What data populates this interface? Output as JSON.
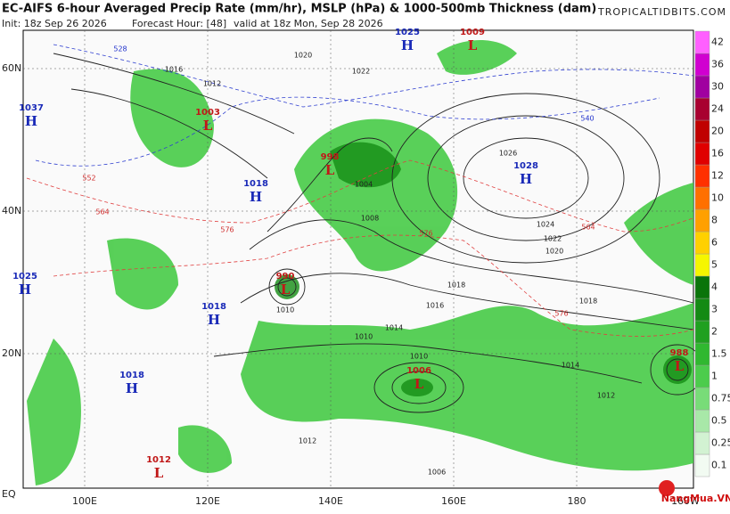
{
  "header": {
    "title": "EC-AIFS 6-hour Averaged Precip Rate (mm/hr), MSLP (hPa) & 1000-500mb Thickness (dam)",
    "init": "Init: 18z Sep 26 2026",
    "forecast_hour": "Forecast Hour: [48]",
    "valid": "valid at 18z Mon, Sep 28 2026",
    "site": "TROPICALTIDBITS.COM"
  },
  "axes": {
    "lon_labels": [
      "100E",
      "120E",
      "140E",
      "160E",
      "180",
      "160W"
    ],
    "lat_labels": [
      "60N",
      "40N",
      "20N",
      "EQ"
    ]
  },
  "colorbar": [
    "0.1",
    "0.25",
    "0.5",
    "0.75",
    "1",
    "1.5",
    "2",
    "3",
    "4",
    "5",
    "6",
    "8",
    "10",
    "12",
    "16",
    "20",
    "24",
    "30",
    "36",
    "42"
  ],
  "centers": [
    {
      "letter": "H",
      "value": "1025"
    },
    {
      "letter": "L",
      "value": "1009"
    },
    {
      "letter": "H",
      "value": "1037"
    },
    {
      "letter": "L",
      "value": "1003"
    },
    {
      "letter": "L",
      "value": "998"
    },
    {
      "letter": "H",
      "value": "1028"
    },
    {
      "letter": "H",
      "value": "1018"
    },
    {
      "letter": "L",
      "value": "990"
    },
    {
      "letter": "H",
      "value": "1025"
    },
    {
      "letter": "H",
      "value": "1018"
    },
    {
      "letter": "L",
      "value": "1006"
    },
    {
      "letter": "L",
      "value": "988"
    },
    {
      "letter": "H",
      "value": "1018"
    },
    {
      "letter": "L",
      "value": "1012"
    }
  ],
  "isobar_labels": [
    "1016",
    "1012",
    "1020",
    "1022",
    "1018",
    "1014",
    "1010",
    "1026",
    "1024",
    "1022",
    "1020",
    "1018",
    "1016",
    "1014",
    "1012",
    "1010",
    "1008",
    "1004",
    "1012",
    "1010",
    "1006"
  ],
  "thickness_labels": [
    "528",
    "540",
    "552",
    "564",
    "576",
    "576",
    "564",
    "576"
  ],
  "watermark": "NangMua.VN"
}
